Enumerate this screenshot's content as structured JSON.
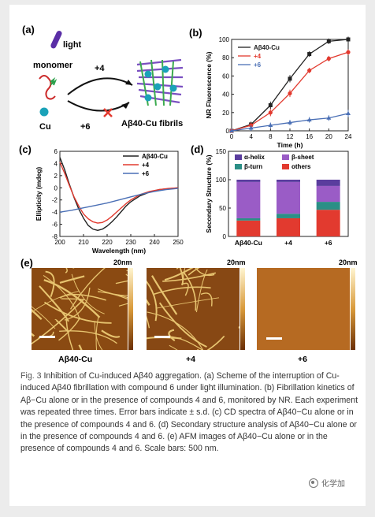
{
  "colors": {
    "black": "#222222",
    "red": "#e23a2f",
    "blue": "#4a6fb5",
    "purple": "#9a5cc6",
    "teal": "#2b8f86",
    "violet": "#5a3d9e"
  },
  "panel_a": {
    "label": "(a)",
    "light": "light",
    "monomer": "monomer",
    "cu": "Cu",
    "plus4": "+4",
    "plus6": "+6",
    "fibrils": "Aβ40-Cu fibrils"
  },
  "panel_b": {
    "label": "(b)"
  },
  "panel_c": {
    "label": "(c)"
  },
  "panel_d": {
    "label": "(d)"
  },
  "panel_e": {
    "label": "(e)",
    "scale_max": "20nm",
    "images": [
      {
        "label": "Aβ40-Cu",
        "scale": "20nm"
      },
      {
        "label": "+4",
        "scale": "20nm"
      },
      {
        "label": "+6",
        "scale": "20nm"
      }
    ]
  },
  "chart_data": [
    {
      "type": "line",
      "xlabel": "Time (h)",
      "ylabel": "NR Fluorescence (%)",
      "xlim": [
        0,
        24
      ],
      "ylim": [
        0,
        100
      ],
      "xticks": [
        0,
        4,
        8,
        12,
        16,
        20,
        24
      ],
      "yticks": [
        0,
        20,
        40,
        60,
        80,
        100
      ],
      "legend_position": "top-left",
      "series": [
        {
          "name": "Aβ40-Cu",
          "color": "#222222",
          "marker": "square",
          "x": [
            0,
            4,
            8,
            12,
            16,
            20,
            24
          ],
          "y": [
            0,
            7,
            28,
            57,
            84,
            98,
            100
          ],
          "err": [
            1,
            3,
            4,
            4,
            3,
            3,
            3
          ]
        },
        {
          "name": "+4",
          "color": "#e23a2f",
          "marker": "circle",
          "x": [
            0,
            4,
            8,
            12,
            16,
            20,
            24
          ],
          "y": [
            0,
            6,
            20,
            41,
            66,
            79,
            86
          ],
          "err": [
            1,
            3,
            4,
            4,
            3,
            3,
            3
          ]
        },
        {
          "name": "+6",
          "color": "#4a6fb5",
          "marker": "triangle",
          "x": [
            0,
            4,
            8,
            12,
            16,
            20,
            24
          ],
          "y": [
            0,
            3,
            6,
            9,
            12,
            14,
            19
          ],
          "err": [
            1,
            3,
            3,
            3,
            3,
            3,
            4
          ]
        }
      ]
    },
    {
      "type": "line",
      "xlabel": "Wavelength (nm)",
      "ylabel": "Ellipticity (mdeg)",
      "xlim": [
        200,
        250
      ],
      "ylim": [
        -8,
        6
      ],
      "xticks": [
        200,
        210,
        220,
        230,
        240,
        250
      ],
      "yticks": [
        -8,
        -6,
        -4,
        -2,
        0,
        2,
        4,
        6
      ],
      "legend_position": "top-right",
      "series": [
        {
          "name": "Aβ40-Cu",
          "color": "#222222",
          "x": [
            200,
            202,
            204,
            206,
            208,
            210,
            212,
            214,
            216,
            218,
            220,
            222,
            224,
            226,
            228,
            230,
            234,
            238,
            242,
            246,
            250
          ],
          "y": [
            5.0,
            3.0,
            0.6,
            -1.6,
            -3.5,
            -5.0,
            -6.2,
            -6.8,
            -7.0,
            -6.8,
            -6.3,
            -5.6,
            -4.8,
            -3.9,
            -3.0,
            -2.3,
            -1.3,
            -0.7,
            -0.3,
            -0.15,
            0.0
          ]
        },
        {
          "name": "+4",
          "color": "#e23a2f",
          "x": [
            200,
            202,
            204,
            206,
            208,
            210,
            212,
            214,
            216,
            218,
            220,
            222,
            224,
            226,
            228,
            230,
            234,
            238,
            242,
            246,
            250
          ],
          "y": [
            4.2,
            2.4,
            0.4,
            -1.5,
            -3.0,
            -4.3,
            -5.1,
            -5.6,
            -5.8,
            -5.7,
            -5.3,
            -4.7,
            -4.0,
            -3.3,
            -2.6,
            -2.0,
            -1.1,
            -0.6,
            -0.3,
            -0.1,
            0.0
          ]
        },
        {
          "name": "+6",
          "color": "#4a6fb5",
          "x": [
            200,
            205,
            210,
            215,
            220,
            225,
            230,
            235,
            240,
            245,
            250
          ],
          "y": [
            -4.0,
            -3.7,
            -3.3,
            -2.9,
            -2.5,
            -2.0,
            -1.5,
            -1.0,
            -0.6,
            -0.3,
            -0.1
          ]
        }
      ]
    },
    {
      "type": "bar",
      "stacked": true,
      "ylabel": "Secondary Structure (%)",
      "categories": [
        "Aβ40-Cu",
        "+4",
        "+6"
      ],
      "ylim": [
        0,
        150
      ],
      "yticks": [
        0,
        50,
        100,
        150
      ],
      "legend_position": "top",
      "series": [
        {
          "name": "others",
          "color": "#e23a2f",
          "values": [
            28,
            32,
            47
          ]
        },
        {
          "name": "β-turn",
          "color": "#2b8f86",
          "values": [
            4,
            8,
            14
          ]
        },
        {
          "name": "β-sheet",
          "color": "#9a5cc6",
          "values": [
            64,
            56,
            28
          ]
        },
        {
          "name": "α-helix",
          "color": "#5a3d9e",
          "values": [
            4,
            4,
            11
          ]
        }
      ]
    }
  ],
  "caption": {
    "fig": "Fig. 3",
    "text": " Inhibition of Cu-induced Aβ40 aggregation. (a) Scheme of the interruption of Cu-induced Aβ40 fibrillation with compound 6 under light illumination. (b) Fibrillation kinetics of Aβ−Cu alone or in the presence of compounds 4 and 6, monitored by NR. Each experiment was repeated three times. Error bars indicate ± s.d. (c) CD spectra of Aβ40−Cu alone or in the presence of compounds 4 and 6. (d) Secondary structure analysis of Aβ40−Cu alone or in the presence of compounds 4 and 6. (e) AFM images of Aβ40−Cu alone or in the presence of compounds 4 and 6. Scale bars: 500 nm."
  },
  "watermark": "化学加"
}
